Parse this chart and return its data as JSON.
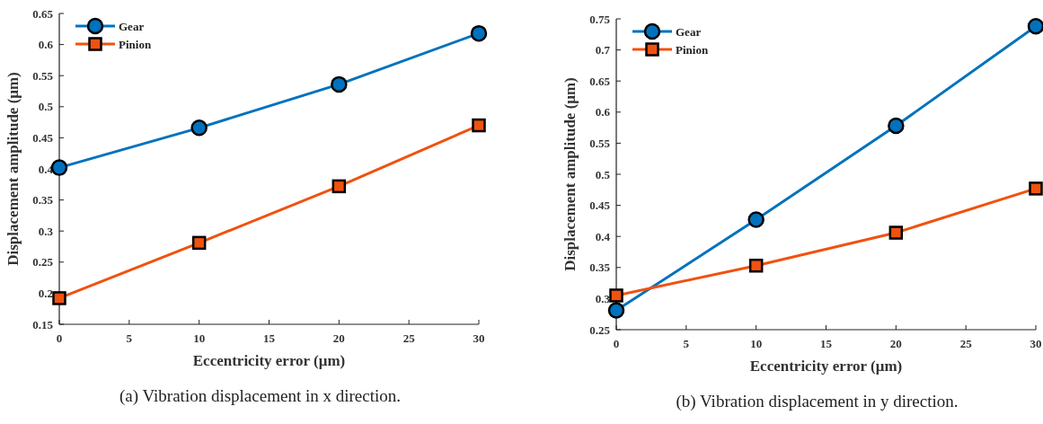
{
  "chart_data": [
    {
      "type": "line",
      "title": "(a) Vibration displacement in x direction.",
      "xlabel": "Eccentricity error (μm)",
      "ylabel": "Displacement amplitude (μm)",
      "x": [
        0,
        10,
        20,
        30
      ],
      "xlim": [
        0,
        30
      ],
      "xticks": [
        0,
        5,
        10,
        15,
        20,
        25,
        30
      ],
      "ylim": [
        0.15,
        0.65
      ],
      "yticks": [
        0.15,
        0.2,
        0.25,
        0.3,
        0.35,
        0.4,
        0.45,
        0.5,
        0.55,
        0.6,
        0.65
      ],
      "legend": "top left",
      "grid": false,
      "series": [
        {
          "name": "Gear",
          "color": "#0072bd",
          "marker": "circle",
          "values": [
            0.402,
            0.466,
            0.536,
            0.618
          ]
        },
        {
          "name": "Pinion",
          "color": "#f0520f",
          "marker": "square",
          "values": [
            0.192,
            0.281,
            0.372,
            0.47
          ]
        }
      ]
    },
    {
      "type": "line",
      "title": "(b) Vibration displacement in y direction.",
      "xlabel": "Eccentricity error (μm)",
      "ylabel": "Displacement amplitude (μm)",
      "x": [
        0,
        10,
        20,
        30
      ],
      "xlim": [
        0,
        30
      ],
      "xticks": [
        0,
        5,
        10,
        15,
        20,
        25,
        30
      ],
      "ylim": [
        0.25,
        0.75
      ],
      "yticks": [
        0.25,
        0.3,
        0.35,
        0.4,
        0.45,
        0.5,
        0.55,
        0.6,
        0.65,
        0.7,
        0.75
      ],
      "legend": "top left",
      "grid": false,
      "series": [
        {
          "name": "Gear",
          "color": "#0072bd",
          "marker": "circle",
          "values": [
            0.281,
            0.427,
            0.578,
            0.738
          ]
        },
        {
          "name": "Pinion",
          "color": "#f0520f",
          "marker": "square",
          "values": [
            0.305,
            0.353,
            0.406,
            0.477
          ]
        }
      ]
    }
  ]
}
